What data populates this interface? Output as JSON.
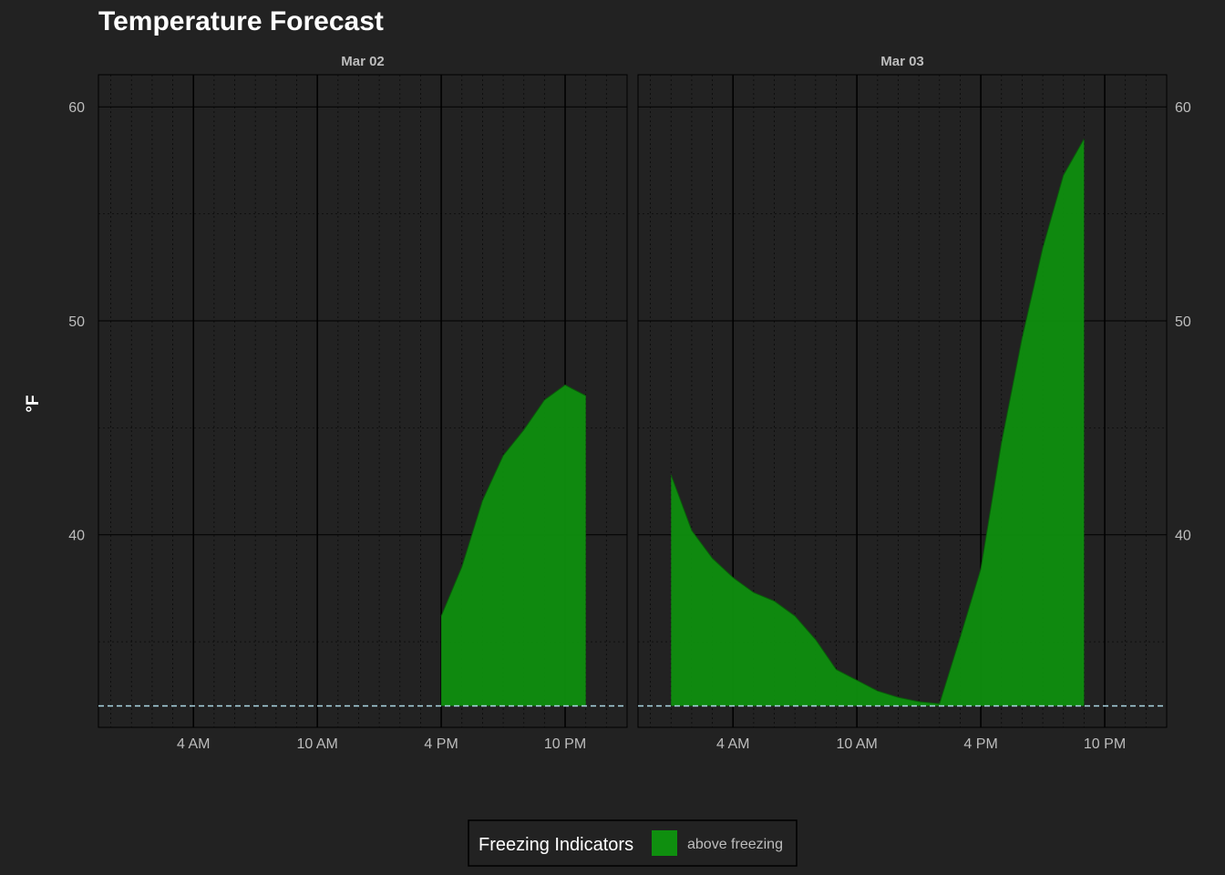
{
  "chart_data": {
    "type": "area",
    "title": "Temperature Forecast",
    "ylabel": "°F",
    "xlabel": "",
    "ylim": [
      31,
      61.5
    ],
    "y_ticks": [
      40,
      50,
      60
    ],
    "x_tick_labels": [
      "4 AM",
      "10 AM",
      "4 PM",
      "10 PM"
    ],
    "x_tick_hours": [
      4,
      10,
      16,
      22
    ],
    "freezing_line": 32,
    "grid": true,
    "legend_position": "bottom",
    "legend_title": "Freezing Indicators",
    "fill_color": "#0f8f0f",
    "freezing_line_color": "#add8e6",
    "panels": [
      {
        "label": "Mar 02",
        "series": [
          {
            "name": "above freezing",
            "x": [
              16,
              17,
              18,
              19,
              20,
              21,
              22,
              23
            ],
            "y": [
              36.2,
              38.5,
              41.6,
              43.7,
              44.9,
              46.3,
              47.0,
              46.5
            ]
          }
        ]
      },
      {
        "label": "Mar 03",
        "series": [
          {
            "name": "above freezing",
            "x": [
              1,
              2,
              3,
              4,
              5,
              6,
              7,
              8,
              9,
              10,
              11,
              12,
              13,
              14,
              15,
              16,
              17,
              18,
              19,
              20,
              21
            ],
            "y": [
              42.8,
              40.2,
              38.9,
              38.0,
              37.3,
              36.9,
              36.2,
              35.1,
              33.7,
              33.2,
              32.7,
              32.4,
              32.2,
              32.1,
              35.2,
              38.4,
              44.3,
              49.2,
              53.4,
              56.8,
              58.5
            ]
          }
        ]
      }
    ]
  },
  "legend": {
    "title": "Freezing Indicators",
    "items": [
      {
        "label": "above freezing",
        "color": "#0f8f0f"
      }
    ]
  }
}
